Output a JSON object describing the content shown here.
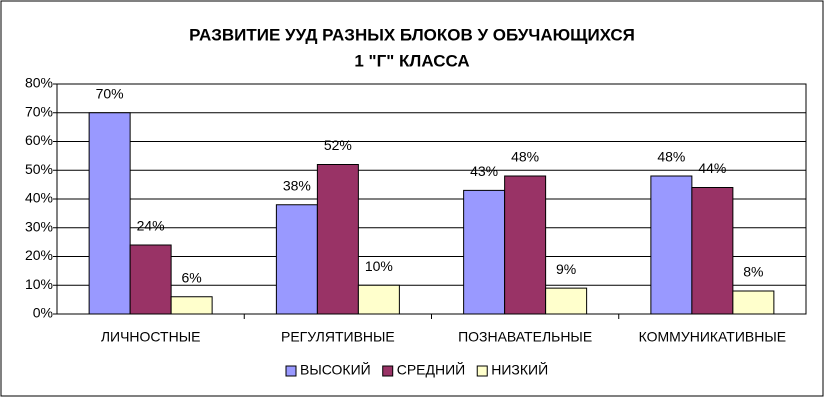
{
  "chart_data": {
    "type": "bar",
    "title": [
      "РАЗВИТИЕ УУД РАЗНЫХ БЛОКОВ У ОБУЧАЮЩИХСЯ",
      "1 \"Г\" КЛАССА"
    ],
    "categories": [
      "ЛИЧНОСТНЫЕ",
      "РЕГУЛЯТИВНЫЕ",
      "ПОЗНАВАТЕЛЬНЫЕ",
      "КОММУНИКАТИВНЫЕ"
    ],
    "series": [
      {
        "name": "ВЫСОКИЙ",
        "color": "#9999ff",
        "values": [
          70,
          38,
          43,
          48
        ],
        "value_labels": [
          "70%",
          "38%",
          "43%",
          "48%"
        ]
      },
      {
        "name": "СРЕДНИЙ",
        "color": "#993366",
        "values": [
          24,
          52,
          48,
          44
        ],
        "value_labels": [
          "24%",
          "52%",
          "48%",
          "44%"
        ]
      },
      {
        "name": "НИЗКИЙ",
        "color": "#ffffcc",
        "values": [
          6,
          10,
          9,
          8
        ],
        "value_labels": [
          "6%",
          "10%",
          "9%",
          "8%"
        ]
      }
    ],
    "ylim": [
      0,
      80
    ],
    "yticks": [
      {
        "value": 0,
        "label": "0%"
      },
      {
        "value": 10,
        "label": "10%"
      },
      {
        "value": 20,
        "label": "20%"
      },
      {
        "value": 30,
        "label": "30%"
      },
      {
        "value": 40,
        "label": "40%"
      },
      {
        "value": 50,
        "label": "50%"
      },
      {
        "value": 60,
        "label": "60%"
      },
      {
        "value": 70,
        "label": "70%"
      },
      {
        "value": 80,
        "label": "80%"
      }
    ],
    "grid": true,
    "legend": "bottom"
  }
}
